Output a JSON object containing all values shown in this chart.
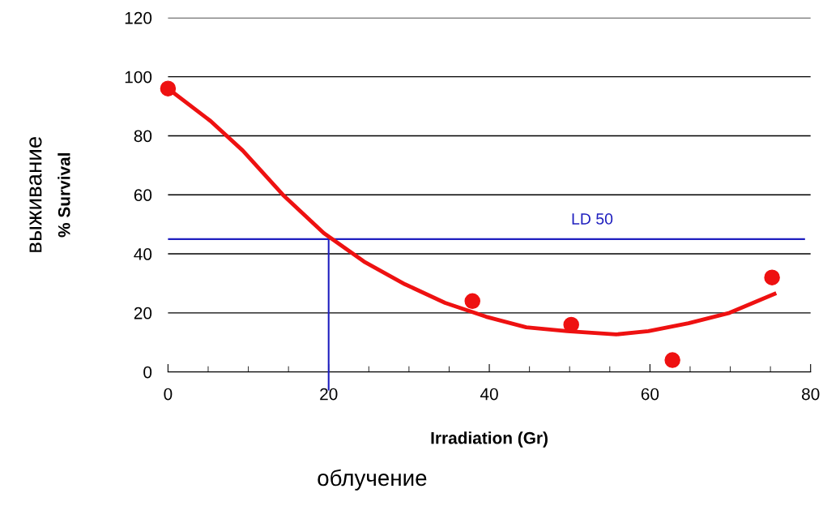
{
  "chart_data": {
    "type": "scatter",
    "xlabel": "Irradiation (Gr)",
    "ylabel": "% Survival",
    "annotations": [
      "облучение",
      "выживание"
    ],
    "xlim": [
      0,
      80
    ],
    "xticks": [
      0,
      20,
      40,
      60,
      80
    ],
    "ylim": [
      0,
      120
    ],
    "yticks": [
      0,
      20,
      40,
      60,
      80,
      100,
      120
    ],
    "grid": "y",
    "legend": false,
    "ref_lines": [
      {
        "axis": "y",
        "value": 45,
        "label": "LD 50",
        "color": "#1f1fbf"
      },
      {
        "axis": "x",
        "value": 20,
        "color": "#1f1fbf"
      }
    ],
    "series": [
      {
        "color": "#ee1111",
        "marker": "circle",
        "x": [
          0,
          37.9,
          50.2,
          62.8,
          75.2
        ],
        "values": [
          96,
          24,
          16,
          4,
          32
        ]
      },
      {
        "type": "line",
        "color": "#ee1111",
        "marker": "none",
        "line_style": "solid",
        "x": [
          0,
          5.3,
          9.3,
          14.3,
          19.4,
          24.4,
          29.5,
          34.5,
          39.6,
          44.6,
          49.7,
          55.8,
          59.8,
          64.8,
          69.9,
          75.5
        ],
        "values": [
          96,
          85,
          75,
          60,
          47,
          37.4,
          29.7,
          23.4,
          18.7,
          15.1,
          13.8,
          12.7,
          13.8,
          16.5,
          20,
          26.4
        ]
      }
    ]
  }
}
